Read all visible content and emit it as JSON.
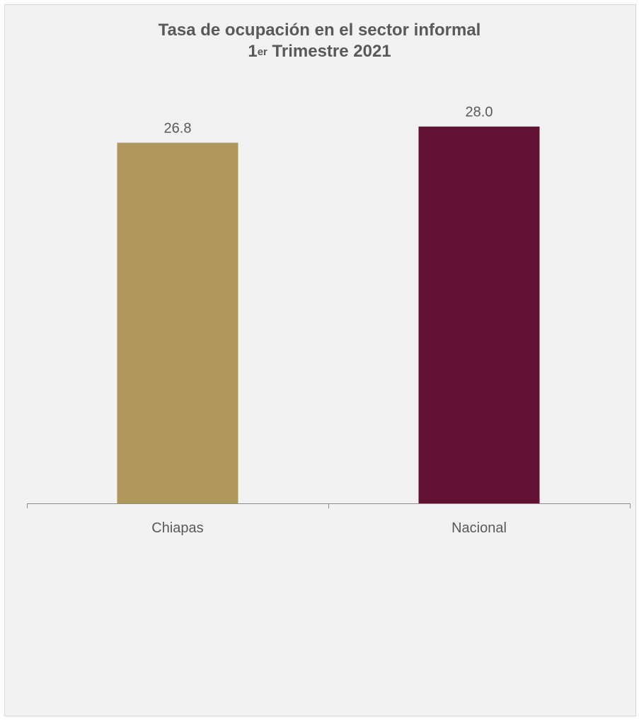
{
  "chart_data": {
    "type": "bar",
    "title_line1": "Tasa de ocupación en el sector informal",
    "title_line2_main": "1",
    "title_line2_sup": "er",
    "title_line2_rest": " Trimestre 2021",
    "categories": [
      "Chiapas",
      "Nacional"
    ],
    "values": [
      26.8,
      28.0
    ],
    "data_labels": [
      "26.8",
      "28.0"
    ],
    "colors": [
      "#b0985c",
      "#611232"
    ],
    "xlabel": "",
    "ylabel": "",
    "ylim": [
      0,
      31.3
    ],
    "grid": false,
    "legend": "none"
  }
}
